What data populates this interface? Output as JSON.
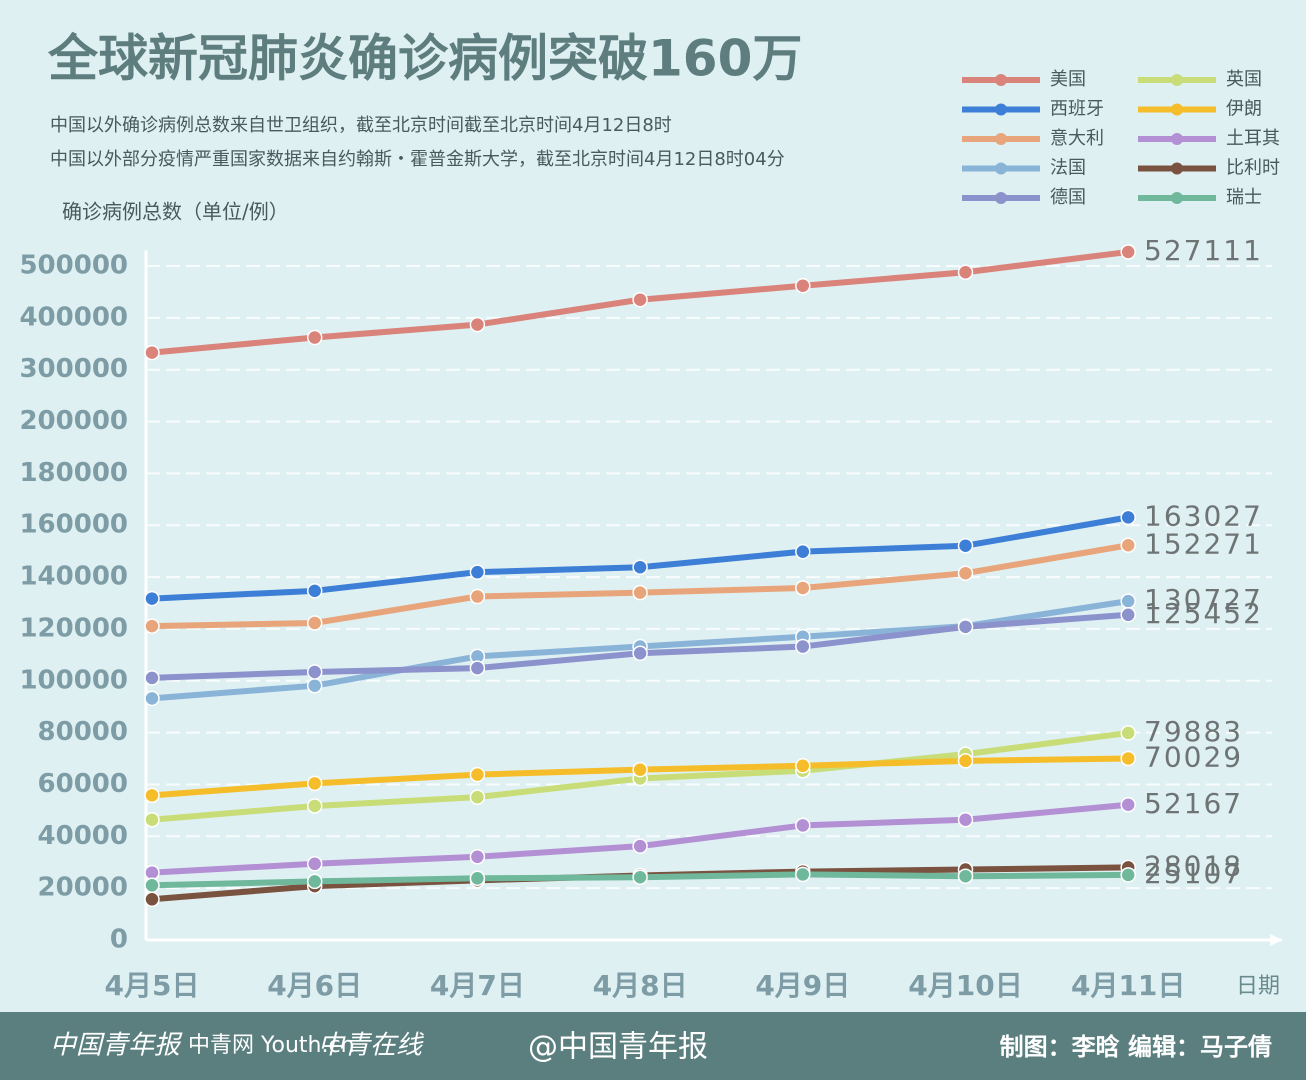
{
  "chart_data": {
    "type": "line",
    "title": "全球新冠肺炎确诊病例突破160万",
    "subtitle": [
      "中国以外确诊病例总数来自世卫组织，截至北京时间截至北京时间4月12日8时",
      "中国以外部分疫情严重国家数据来自约翰斯・霍普金斯大学，截至北京时间4月12日8时04分"
    ],
    "y_label": "确诊病例总数（单位/例）",
    "x_label": "日期",
    "categories": [
      "4月5日",
      "4月6日",
      "4月7日",
      "4月8日",
      "4月9日",
      "4月10日",
      "4月11日"
    ],
    "ylim": [
      0,
      530000
    ],
    "yticks": [
      0,
      20000,
      40000,
      60000,
      80000,
      100000,
      120000,
      140000,
      160000,
      180000,
      200000,
      300000,
      400000,
      500000
    ],
    "grid": true,
    "series": [
      {
        "name": "美国",
        "color": "#d9837a",
        "values": [
          333000,
          362000,
          387000,
          435000,
          462000,
          488000,
          527111
        ]
      },
      {
        "name": "西班牙",
        "color": "#3d7fd6",
        "values": [
          131700,
          134700,
          141900,
          143800,
          149800,
          152100,
          163027
        ]
      },
      {
        "name": "意大利",
        "color": "#e8a57b",
        "values": [
          121100,
          122300,
          132500,
          134000,
          135800,
          141500,
          152271
        ]
      },
      {
        "name": "法国",
        "color": "#8ab3d8",
        "values": [
          93200,
          98100,
          109400,
          113200,
          117000,
          121100,
          130727
        ]
      },
      {
        "name": "德国",
        "color": "#8c92cc",
        "values": [
          101100,
          103400,
          104900,
          110600,
          113200,
          120800,
          125452
        ]
      },
      {
        "name": "英国",
        "color": "#c8dc78",
        "values": [
          46400,
          51700,
          55100,
          62300,
          65300,
          71700,
          79883
        ]
      },
      {
        "name": "伊朗",
        "color": "#f5bd2a",
        "values": [
          55800,
          60400,
          63800,
          65700,
          67200,
          69100,
          70029
        ]
      },
      {
        "name": "土耳其",
        "color": "#b38fd4",
        "values": [
          26000,
          29400,
          32100,
          36200,
          44200,
          46400,
          52167
        ]
      },
      {
        "name": "比利时",
        "color": "#7a5240",
        "values": [
          15700,
          20800,
          23000,
          24900,
          26400,
          27200,
          28018
        ]
      },
      {
        "name": "瑞士",
        "color": "#6fb89b",
        "values": [
          21100,
          22600,
          23800,
          24200,
          25300,
          24600,
          25107
        ]
      }
    ]
  },
  "footer": {
    "logos": [
      "中国青年报",
      "中青网 Youth.cn",
      "中青在线"
    ],
    "account": "@中国青年报",
    "credits": "制图：李晗   编辑：马子倩"
  }
}
